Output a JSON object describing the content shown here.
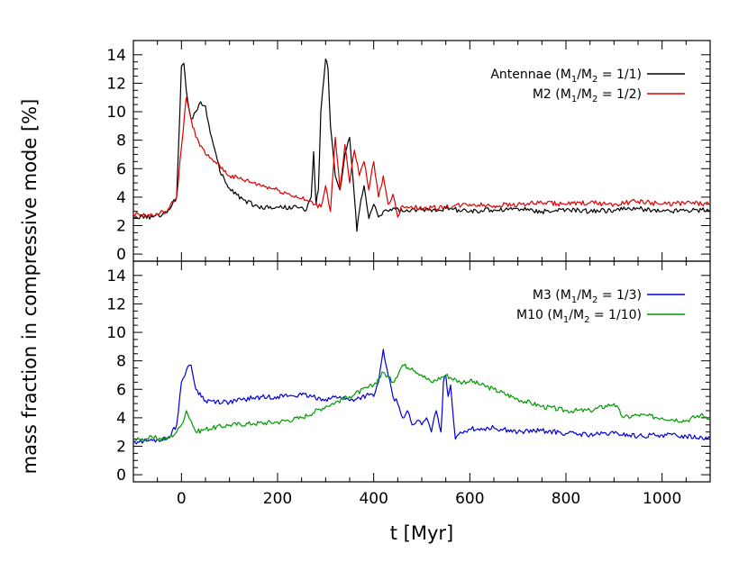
{
  "chart_data": [
    {
      "type": "line",
      "panel": "top",
      "xlim": [
        -100,
        1100
      ],
      "ylim": [
        -0.5,
        15
      ],
      "y_ticks": [
        0,
        2,
        4,
        6,
        8,
        10,
        12,
        14
      ],
      "legend_placement": "top-right",
      "series": [
        {
          "name": "Antennae (M1/M2 = 1/1)",
          "legend_main": "Antennae (M",
          "legend_ratio": "= 1/1)",
          "color": "#000000",
          "x": [
            -100,
            -60,
            -30,
            -10,
            0,
            5,
            10,
            20,
            30,
            40,
            50,
            60,
            80,
            100,
            130,
            160,
            200,
            240,
            260,
            270,
            275,
            280,
            285,
            290,
            300,
            305,
            310,
            320,
            330,
            340,
            350,
            360,
            365,
            370,
            380,
            390,
            400,
            410,
            420,
            440,
            460,
            500,
            550,
            600,
            650,
            700,
            750,
            800,
            850,
            900,
            950,
            1000,
            1050,
            1100
          ],
          "y": [
            2.6,
            2.6,
            2.9,
            4.0,
            13.2,
            13.4,
            11.5,
            9.5,
            10.0,
            10.7,
            10.4,
            8.5,
            5.8,
            4.6,
            3.8,
            3.3,
            3.3,
            3.3,
            3.1,
            4.0,
            7.2,
            3.5,
            4.5,
            10.0,
            13.7,
            13.0,
            9.0,
            5.5,
            4.5,
            7.0,
            8.2,
            4.0,
            1.6,
            3.0,
            4.8,
            2.5,
            3.5,
            2.6,
            3.0,
            3.2,
            3.0,
            3.1,
            3.2,
            3.0,
            3.1,
            3.2,
            3.0,
            3.1,
            3.0,
            3.1,
            3.2,
            3.0,
            3.1,
            3.1
          ]
        },
        {
          "name": "M2 (M1/M2 = 1/2)",
          "legend_main": "M2 (M",
          "legend_ratio": "= 1/2)",
          "color": "#dd0000",
          "x": [
            -100,
            -60,
            -30,
            -10,
            0,
            10,
            20,
            30,
            50,
            70,
            100,
            150,
            200,
            250,
            290,
            300,
            310,
            320,
            330,
            340,
            350,
            360,
            370,
            380,
            390,
            400,
            410,
            420,
            430,
            440,
            450,
            460,
            500,
            550,
            600,
            650,
            700,
            750,
            800,
            850,
            900,
            950,
            1000,
            1050,
            1100
          ],
          "y": [
            2.8,
            2.7,
            3.0,
            4.0,
            7.5,
            11.0,
            9.5,
            8.2,
            7.0,
            6.5,
            5.5,
            5.0,
            4.5,
            3.9,
            3.3,
            4.8,
            3.0,
            8.2,
            4.5,
            7.7,
            5.0,
            7.3,
            5.5,
            6.5,
            4.5,
            6.5,
            4.0,
            5.5,
            3.5,
            4.2,
            2.6,
            3.4,
            3.2,
            3.3,
            3.5,
            3.4,
            3.5,
            3.6,
            3.5,
            3.6,
            3.5,
            3.7,
            3.5,
            3.6,
            3.5
          ]
        }
      ]
    },
    {
      "type": "line",
      "panel": "bottom",
      "xlim": [
        -100,
        1100
      ],
      "ylim": [
        -0.5,
        15
      ],
      "y_ticks": [
        0,
        2,
        4,
        6,
        8,
        10,
        12,
        14
      ],
      "legend_placement": "top-right",
      "series": [
        {
          "name": "M3 (M1/M2 = 1/3)",
          "legend_main": "M3 (M",
          "legend_ratio": "= 1/3)",
          "color": "#0000dd",
          "x": [
            -100,
            -60,
            -30,
            -10,
            0,
            10,
            20,
            30,
            50,
            100,
            150,
            200,
            250,
            300,
            330,
            350,
            370,
            390,
            400,
            410,
            420,
            425,
            430,
            440,
            450,
            460,
            470,
            480,
            490,
            500,
            510,
            520,
            530,
            540,
            545,
            550,
            555,
            560,
            570,
            580,
            600,
            650,
            700,
            750,
            800,
            850,
            900,
            950,
            1000,
            1050,
            1100
          ],
          "y": [
            2.3,
            2.4,
            2.5,
            3.5,
            6.5,
            7.3,
            7.7,
            6.0,
            5.2,
            5.1,
            5.4,
            5.5,
            5.6,
            5.3,
            5.5,
            5.2,
            5.4,
            5.6,
            5.5,
            6.5,
            8.8,
            7.8,
            7.0,
            5.5,
            5.0,
            4.0,
            4.5,
            3.5,
            3.8,
            3.5,
            4.0,
            3.0,
            4.5,
            3.0,
            6.5,
            7.0,
            5.5,
            6.3,
            2.5,
            3.0,
            3.2,
            3.3,
            3.0,
            3.1,
            2.9,
            2.8,
            2.9,
            2.7,
            2.8,
            2.7,
            2.6
          ]
        },
        {
          "name": "M10 (M1/M2 = 1/10)",
          "legend_main": "M10 (M",
          "legend_ratio": "= 1/10)",
          "color": "#009900",
          "x": [
            -100,
            -60,
            -30,
            -10,
            0,
            10,
            20,
            30,
            50,
            100,
            150,
            200,
            250,
            300,
            350,
            400,
            420,
            440,
            460,
            480,
            500,
            520,
            550,
            580,
            600,
            650,
            700,
            750,
            800,
            850,
            900,
            920,
            950,
            1000,
            1050,
            1080,
            1100
          ],
          "y": [
            2.4,
            2.6,
            2.5,
            3.0,
            3.5,
            4.5,
            3.8,
            3.0,
            3.2,
            3.5,
            3.6,
            3.7,
            4.0,
            4.8,
            5.5,
            6.3,
            7.2,
            6.5,
            7.7,
            7.5,
            7.0,
            6.5,
            7.0,
            6.5,
            6.6,
            6.0,
            5.3,
            4.8,
            4.5,
            4.5,
            5.0,
            4.0,
            4.2,
            4.0,
            3.8,
            4.2,
            4.0
          ]
        }
      ]
    }
  ],
  "axes": {
    "xlabel": "t [Myr]",
    "ylabel": "mass fraction in compressive mode [%]",
    "x_ticks": [
      0,
      200,
      400,
      600,
      800,
      1000
    ],
    "legend_sub1": "1",
    "legend_sub2": "2",
    "legend_mid": "/M"
  }
}
